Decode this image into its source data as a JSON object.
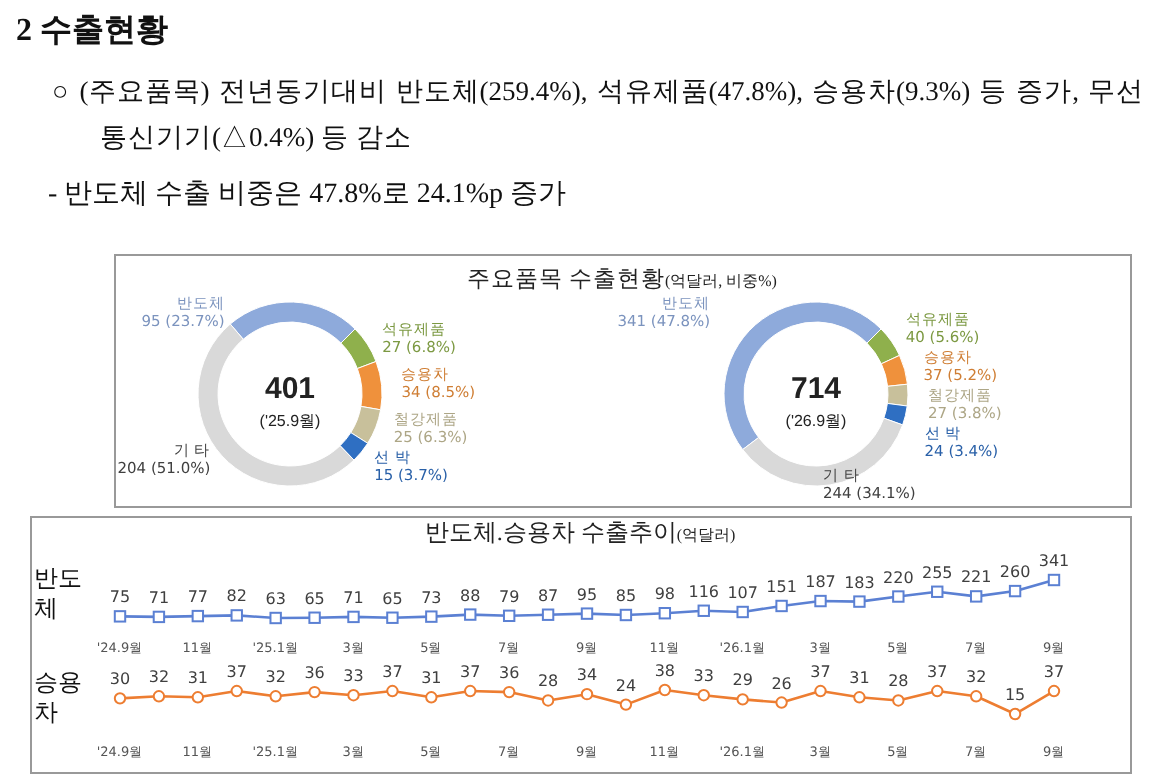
{
  "chart_data": [
    {
      "type": "donut",
      "title": "주요품목 수출현황(억달러, 비중%)",
      "annotations": [
        "2 수출현황",
        "○ (주요품목) 전년동기대비 반도체(259.4%), 석유제품(47.8%), 승용차(9.3%) 등 증가, 무선통신기기(△0.4%) 등 감소",
        "- 반도체 수출 비중은 47.8%로 24.1%p 증가",
        "401",
        "('25.9월)"
      ],
      "categories": [
        "반도체",
        "석유제품",
        "승용차",
        "철강제품",
        "선 박",
        "기 타"
      ],
      "values": [
        95,
        27,
        34,
        25,
        15,
        204
      ],
      "value_labels": [
        "95 (23.7%)",
        "27 (6.8%)",
        "34 (8.5%)",
        "25 (6.3%)",
        "15 (3.7%)",
        "204 (51.0%)"
      ],
      "colors": [
        "#8eaadb",
        "#8fb04c",
        "#ef913c",
        "#c8c09b",
        "#2f6fc2",
        "#d9d9d9"
      ]
    },
    {
      "type": "donut",
      "annotations": [
        "714",
        "('26.9월)"
      ],
      "categories": [
        "반도체",
        "석유제품",
        "승용차",
        "철강제품",
        "선 박",
        "기 타"
      ],
      "values": [
        341,
        40,
        37,
        27,
        24,
        244
      ],
      "value_labels": [
        "341 (47.8%)",
        "40 (5.6%)",
        "37 (5.2%)",
        "27 (3.8%)",
        "24 (3.4%)",
        "244 (34.1%)"
      ],
      "colors": [
        "#8eaadb",
        "#8fb04c",
        "#ef913c",
        "#c8c09b",
        "#2f6fc2",
        "#d9d9d9"
      ]
    },
    {
      "type": "line",
      "title": "반도체.승용차 수출추이(억달러)",
      "ylabel": "반도체",
      "data_labels": true,
      "marker": "square",
      "categories": [
        "'24.9월",
        null,
        "11월",
        null,
        "'25.1월",
        null,
        "3월",
        null,
        "5월",
        null,
        "7월",
        null,
        "9월",
        null,
        "11월",
        null,
        "'26.1월",
        null,
        "3월",
        null,
        "5월",
        null,
        "7월",
        null,
        "9월"
      ],
      "series": [
        {
          "color": "#5b80d3",
          "values": [
            75,
            71,
            77,
            82,
            63,
            65,
            71,
            65,
            73,
            88,
            79,
            87,
            95,
            85,
            98,
            116,
            107,
            151,
            187,
            183,
            220,
            255,
            221,
            260,
            341
          ]
        }
      ]
    },
    {
      "type": "line",
      "ylabel": "승용차",
      "data_labels": true,
      "marker": "circle",
      "categories": [
        "'24.9월",
        null,
        "11월",
        null,
        "'25.1월",
        null,
        "3월",
        null,
        "5월",
        null,
        "7월",
        null,
        "9월",
        null,
        "11월",
        null,
        "'26.1월",
        null,
        "3월",
        null,
        "5월",
        null,
        "7월",
        null,
        "9월"
      ],
      "series": [
        {
          "color": "#ed7d31",
          "values": [
            30,
            32,
            31,
            37,
            32,
            36,
            33,
            37,
            31,
            37,
            36,
            28,
            34,
            24,
            38,
            33,
            29,
            26,
            37,
            31,
            28,
            37,
            32,
            15,
            37
          ]
        }
      ]
    }
  ]
}
